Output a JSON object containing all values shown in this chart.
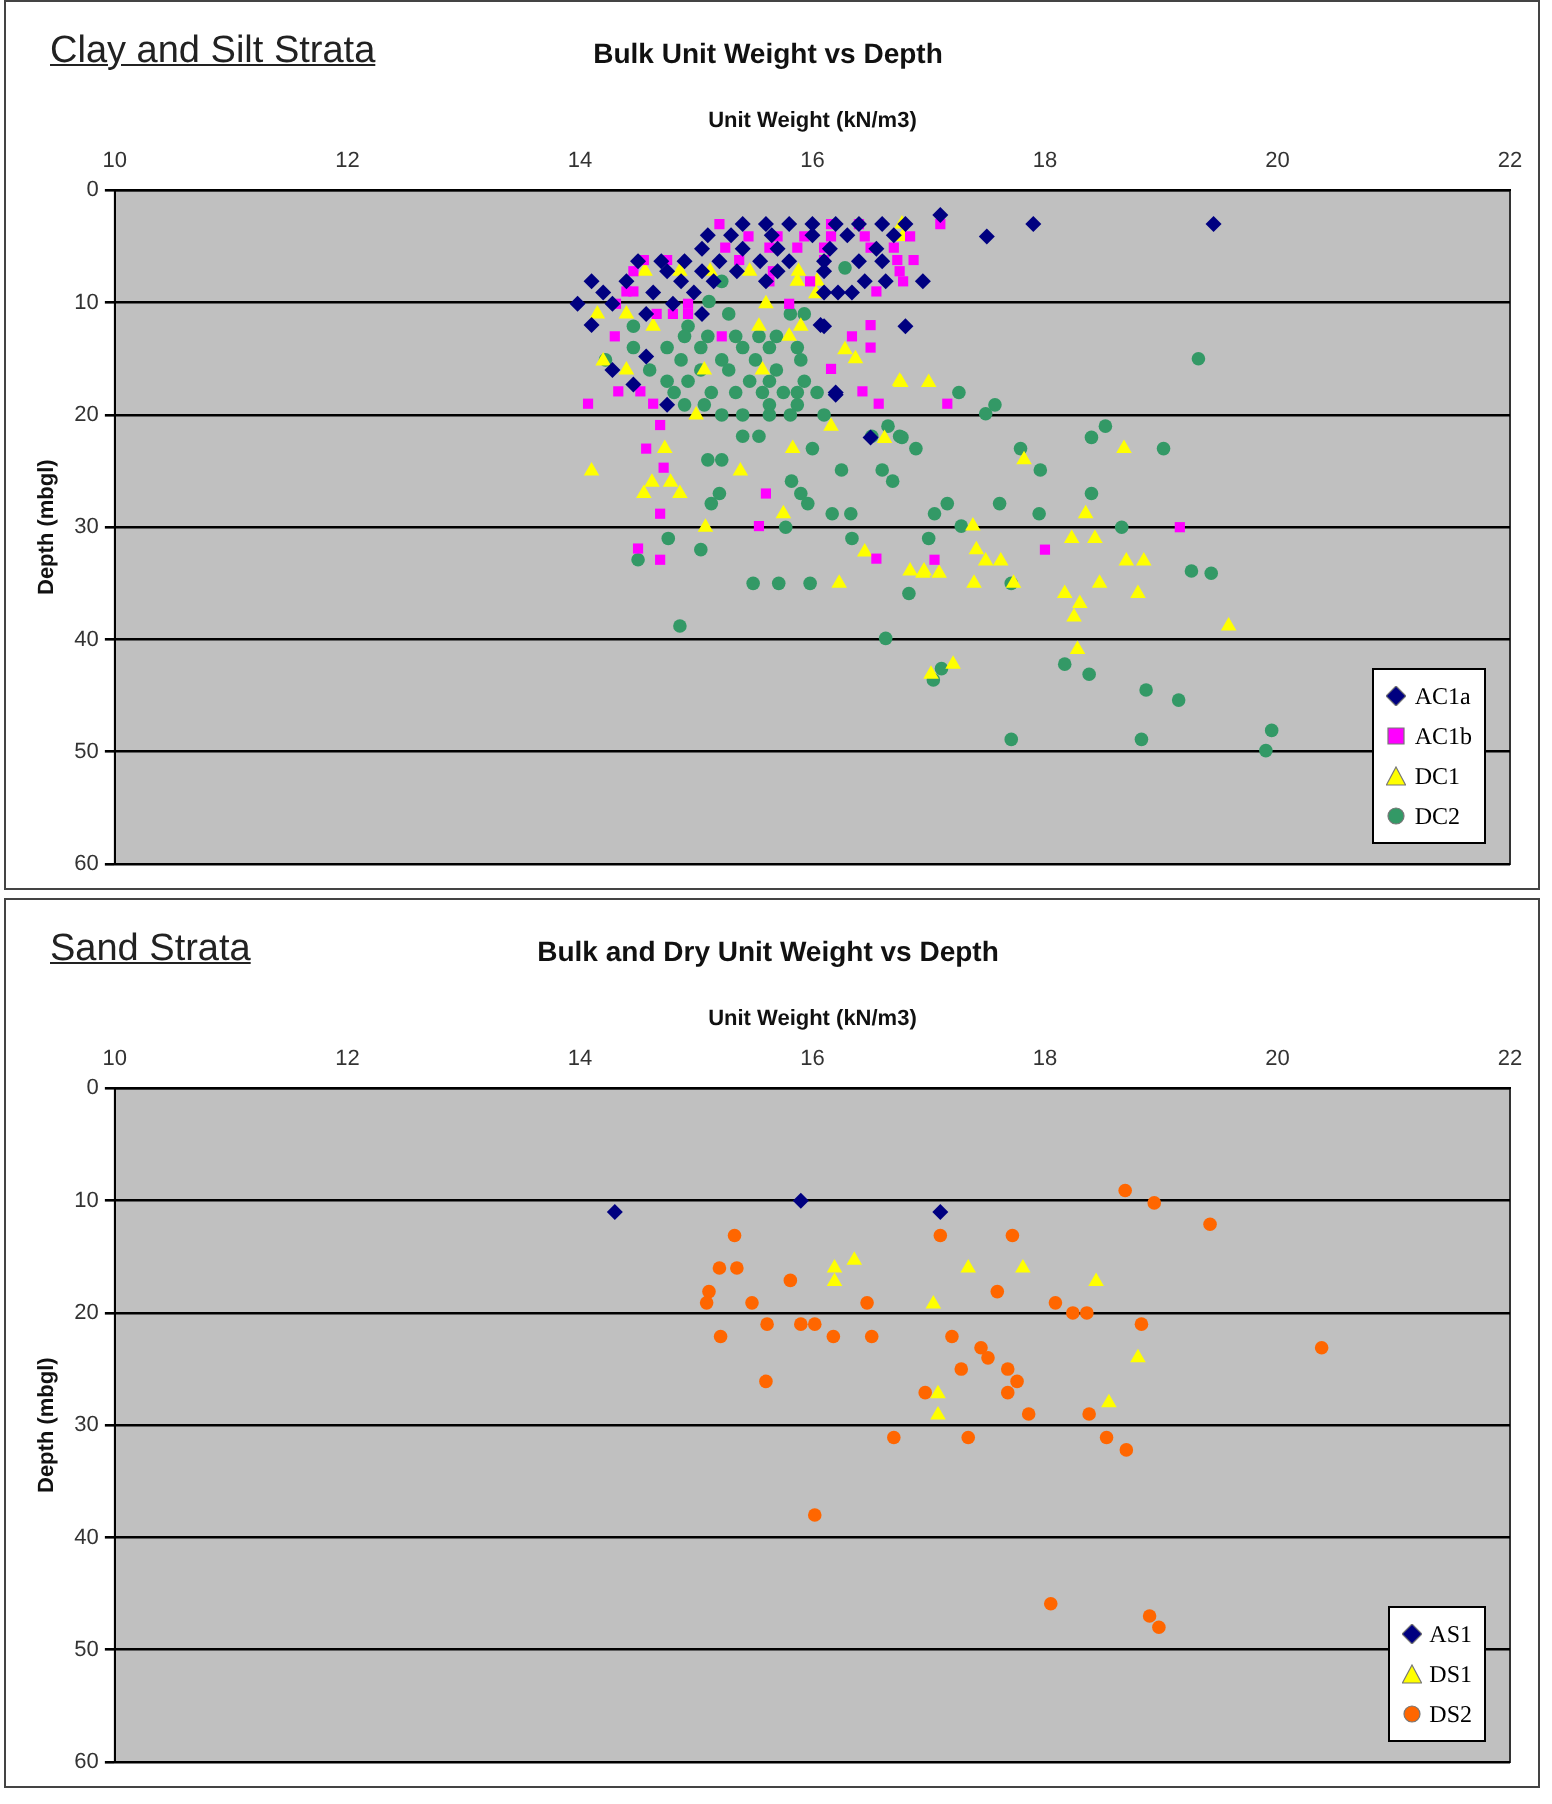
{
  "chart_data": [
    {
      "type": "scatter",
      "title": "Bulk Unit Weight vs Depth",
      "annotations": [
        "Clay and Silt Strata"
      ],
      "xlabel": "Unit Weight (kN/m3)",
      "ylabel": "Depth (mbgl)",
      "xlim": [
        10,
        22
      ],
      "xticks": [
        10,
        12,
        14,
        16,
        18,
        20,
        22
      ],
      "ylim": [
        60,
        0
      ],
      "yticks": [
        0,
        10,
        20,
        30,
        40,
        50,
        60
      ],
      "grid": "y",
      "legend": "bottom right",
      "series": [
        {
          "name": "AC1a",
          "color": "#000080",
          "marker": "diamond",
          "x": [
            15.4,
            15.6,
            15.8,
            16.0,
            16.2,
            16.4,
            16.6,
            16.8,
            17.1,
            17.5,
            17.9,
            19.45,
            15.1,
            15.3,
            15.65,
            16.0,
            16.3,
            16.7,
            15.05,
            15.4,
            15.7,
            16.15,
            16.55,
            14.5,
            14.7,
            14.9,
            15.2,
            15.55,
            15.8,
            16.1,
            16.4,
            16.6,
            16.63,
            16.95,
            14.75,
            15.05,
            15.35,
            15.7,
            16.1,
            14.1,
            14.4,
            14.87,
            15.15,
            15.6,
            16.45,
            14.2,
            14.63,
            14.98,
            16.1,
            16.22,
            16.34,
            13.98,
            14.28,
            14.8,
            14.57,
            15.05,
            16.1,
            16.8,
            14.1,
            16.07,
            14.57,
            14.28,
            14.46,
            14.75,
            16.2,
            16.2,
            16.5
          ],
          "values": [
            3,
            3,
            3,
            3,
            3,
            3,
            3,
            3,
            2.2,
            4.1,
            3,
            3,
            4,
            4,
            4,
            4,
            4,
            4,
            5.2,
            5.2,
            5.2,
            5.2,
            5.2,
            6.3,
            6.3,
            6.3,
            6.3,
            6.3,
            6.3,
            6.3,
            6.3,
            6.3,
            8.1,
            8.1,
            7.2,
            7.2,
            7.2,
            7.2,
            7.2,
            8.1,
            8.1,
            8.1,
            8.1,
            8.1,
            8.1,
            9.1,
            9.1,
            9.1,
            9.1,
            9.1,
            9.1,
            10.1,
            10.1,
            10.1,
            11,
            11,
            12.1,
            12.1,
            12,
            12,
            14.8,
            16,
            17.3,
            19.1,
            18.2,
            18,
            22
          ]
        },
        {
          "name": "AC1b",
          "color": "#ff00ff",
          "marker": "square",
          "x": [
            15.2,
            16.16,
            16.4,
            17.1,
            15.45,
            15.7,
            15.93,
            16.16,
            16.45,
            16.84,
            15.25,
            15.63,
            15.87,
            16.1,
            16.5,
            16.7,
            14.55,
            14.75,
            15.37,
            16.1,
            16.73,
            16.87,
            14.46,
            15.66,
            16.75,
            15.63,
            15.98,
            16.78,
            16.55,
            14.4,
            14.46,
            14.31,
            14.93,
            15.8,
            14.66,
            14.8,
            14.93,
            16.5,
            14.3,
            15.22,
            16.34,
            16.5,
            16.16,
            14.33,
            14.52,
            16.43,
            14.07,
            14.63,
            16.57,
            17.16,
            14.69,
            14.57,
            14.72,
            15.6,
            14.69,
            15.54,
            14.5,
            14.69,
            16.55,
            17.05,
            18.0,
            19.16
          ],
          "values": [
            3,
            3,
            3,
            3,
            4.1,
            4.1,
            4.1,
            4.1,
            4.1,
            4.1,
            5.1,
            5.1,
            5.1,
            5.1,
            5.1,
            5.1,
            6.2,
            6.2,
            6.2,
            6.2,
            6.2,
            6.2,
            7.2,
            7.2,
            7.2,
            8.1,
            8.1,
            8.1,
            9,
            9,
            9,
            10.1,
            10.1,
            10.1,
            11,
            11,
            11,
            12,
            13,
            13,
            13,
            14,
            15.9,
            17.9,
            17.9,
            17.9,
            19,
            19,
            19,
            19,
            20.9,
            23,
            24.7,
            27,
            28.8,
            29.9,
            31.9,
            32.9,
            32.8,
            32.9,
            32,
            30
          ]
        },
        {
          "name": "DC1",
          "color": "#ffff00",
          "marker": "triangle",
          "x": [
            16.77,
            16.78,
            14.56,
            14.86,
            15.12,
            15.46,
            15.88,
            16.04,
            15.87,
            16.03,
            15.6,
            14.15,
            14.4,
            14.63,
            15.54,
            15.9,
            15.8,
            16.28,
            16.37,
            14.2,
            14.4,
            15.07,
            15.57,
            16.75,
            16.76,
            17.0,
            15.0,
            16.16,
            16.62,
            14.73,
            15.83,
            17.82,
            18.68,
            14.1,
            15.38,
            14.62,
            14.78,
            14.55,
            14.86,
            15.75,
            18.35,
            15.08,
            17.38,
            18.23,
            18.43,
            16.45,
            17.41,
            17.49,
            18.7,
            16.84,
            16.96,
            17.62,
            18.85,
            16.23,
            16.95,
            17.09,
            17.39,
            17.73,
            18.17,
            18.3,
            18.47,
            18.8,
            18.25,
            19.58,
            18.28,
            17.02,
            17.21
          ],
          "values": [
            3,
            4.1,
            7.2,
            7.2,
            7.2,
            7.2,
            7.2,
            8.1,
            8.1,
            9.2,
            10.1,
            11,
            11,
            12.1,
            12.1,
            12.1,
            13,
            14.2,
            15,
            15.2,
            16,
            16,
            16,
            17,
            17.1,
            17.1,
            20,
            21,
            22.1,
            23,
            23,
            24,
            23,
            25,
            25,
            26,
            26,
            27,
            27,
            28.8,
            28.8,
            30,
            29.9,
            31,
            31,
            32.2,
            32,
            33,
            33,
            33.9,
            33.9,
            33,
            33,
            35,
            34.1,
            34.1,
            35,
            35,
            35.9,
            36.8,
            35,
            35.9,
            38,
            38.8,
            40.9,
            43.1,
            42.2
          ]
        },
        {
          "name": "DC2",
          "color": "#339966",
          "marker": "circle",
          "x": [
            16.28,
            15.22,
            15.11,
            15.28,
            15.81,
            15.93,
            14.46,
            14.93,
            14.9,
            15.1,
            15.34,
            15.54,
            15.69,
            14.46,
            14.75,
            15.04,
            15.4,
            15.63,
            15.87,
            14.22,
            14.87,
            15.22,
            15.51,
            15.9,
            14.6,
            15.04,
            15.28,
            15.69,
            14.75,
            14.93,
            15.46,
            15.63,
            15.93,
            14.81,
            15.13,
            15.34,
            15.57,
            15.75,
            15.87,
            16.04,
            14.9,
            15.07,
            15.63,
            15.87,
            15.22,
            15.4,
            15.63,
            15.81,
            16.1,
            15.4,
            15.54,
            16.51,
            16.75,
            15.1,
            15.22,
            16.25,
            16.6,
            15.82,
            16.69,
            15.2,
            15.9,
            15.13,
            15.96,
            16.17,
            16.33,
            14.76,
            15.04,
            14.5,
            19.32,
            17.26,
            17.57,
            17.49,
            18.52,
            18.4,
            16.65,
            16.77,
            16.89,
            17.79,
            19.02,
            16.0,
            17.96,
            18.4,
            17.16,
            17.61,
            17.05,
            17.95,
            17.28,
            18.66,
            15.77,
            16.34,
            17.0,
            19.26,
            15.49,
            15.71,
            15.98,
            14.86,
            16.83,
            16.63,
            17.71,
            17.11,
            17.04,
            17.71,
            18.17,
            18.38,
            18.87,
            19.15,
            18.83,
            19.43,
            19.95,
            19.9
          ],
          "values": [
            6.9,
            8.1,
            9.9,
            11,
            11,
            11,
            12.1,
            12.1,
            13,
            13,
            13,
            13,
            13,
            14,
            14,
            14,
            14,
            14,
            14,
            15.1,
            15.1,
            15.1,
            15.1,
            15.1,
            16,
            16,
            16,
            16,
            17,
            17,
            17,
            17,
            17,
            18,
            18,
            18,
            18,
            18,
            18,
            18,
            19.1,
            19.1,
            19.1,
            19.1,
            20,
            20,
            20,
            20,
            20,
            21.9,
            21.9,
            21.9,
            21.9,
            24,
            24,
            24.9,
            24.9,
            25.9,
            25.9,
            27,
            27,
            27.9,
            27.9,
            28.8,
            28.8,
            31,
            32,
            32.9,
            15,
            18,
            19.1,
            19.9,
            21,
            22,
            21,
            22,
            23,
            23,
            23,
            23,
            24.9,
            27,
            27.9,
            27.9,
            28.8,
            28.8,
            29.9,
            30,
            30,
            31,
            31,
            33.9,
            35,
            35,
            35,
            38.8,
            35.9,
            39.9,
            35,
            42.6,
            43.6,
            48.9,
            42.2,
            43.1,
            44.5,
            45.4,
            48.9,
            34.1,
            48.1,
            49.9
          ]
        }
      ]
    },
    {
      "type": "scatter",
      "title": "Bulk and Dry Unit Weight vs Depth",
      "annotations": [
        "Sand Strata"
      ],
      "xlabel": "Unit Weight (kN/m3)",
      "ylabel": "Depth (mbgl)",
      "xlim": [
        10,
        22
      ],
      "xticks": [
        10,
        12,
        14,
        16,
        18,
        20,
        22
      ],
      "ylim": [
        60,
        0
      ],
      "yticks": [
        0,
        10,
        20,
        30,
        40,
        50,
        60
      ],
      "grid": "y",
      "legend": "bottom right",
      "series": [
        {
          "name": "AS1",
          "color": "#000080",
          "marker": "diamond",
          "x": [
            14.3,
            15.9,
            17.1
          ],
          "values": [
            11,
            10,
            11
          ]
        },
        {
          "name": "DS1",
          "color": "#ffff00",
          "marker": "triangle",
          "x": [
            16.19,
            16.19,
            16.36,
            17.34,
            17.81,
            18.44,
            17.04,
            18.8,
            17.08,
            17.08,
            18.55
          ],
          "values": [
            16,
            17.2,
            15.3,
            16,
            16,
            17.2,
            19.2,
            24,
            27.2,
            29.1,
            28
          ]
        },
        {
          "name": "DS2",
          "color": "#ff6600",
          "marker": "circle",
          "x": [
            15.33,
            15.2,
            15.35,
            15.11,
            15.09,
            15.48,
            15.81,
            15.21,
            15.61,
            15.9,
            16.02,
            15.6,
            16.02,
            16.18,
            16.47,
            16.51,
            17.1,
            17.72,
            18.69,
            18.94,
            19.42,
            17.59,
            18.09,
            18.24,
            18.36,
            18.83,
            20.38,
            17.2,
            17.45,
            17.51,
            17.28,
            17.68,
            17.76,
            16.97,
            17.68,
            17.86,
            18.38,
            16.7,
            17.34,
            18.53,
            18.7,
            18.05,
            18.9,
            18.98
          ],
          "values": [
            13.1,
            16,
            16,
            18.1,
            19.1,
            19.1,
            17.1,
            22.1,
            21,
            21,
            21,
            26.1,
            38,
            22.1,
            19.1,
            22.1,
            13.1,
            13.1,
            9.1,
            10.2,
            12.1,
            18.1,
            19.1,
            20,
            20,
            21,
            23.1,
            22.1,
            23.1,
            24,
            25,
            25,
            26.1,
            27.1,
            27.1,
            29,
            29,
            31.1,
            31.1,
            31.1,
            32.2,
            45.9,
            47,
            48
          ]
        }
      ]
    }
  ]
}
